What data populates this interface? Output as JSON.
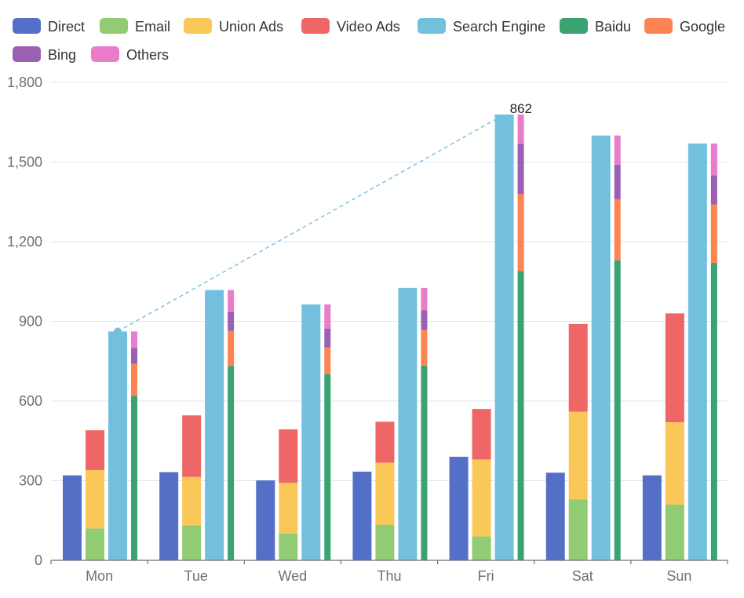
{
  "chart_data": {
    "type": "bar",
    "categories": [
      "Mon",
      "Tue",
      "Wed",
      "Thu",
      "Fri",
      "Sat",
      "Sun"
    ],
    "ylim": [
      0,
      1800
    ],
    "yticks": [
      0,
      300,
      600,
      900,
      1200,
      1500,
      1800
    ],
    "ytick_labels": [
      "0",
      "300",
      "600",
      "900",
      "1,200",
      "1,500",
      "1,800"
    ],
    "grid": true,
    "legend_position": "top-left",
    "series": [
      {
        "name": "Direct",
        "stack": "direct",
        "color": "#5470c6",
        "values": [
          320,
          332,
          301,
          334,
          390,
          330,
          320
        ]
      },
      {
        "name": "Email",
        "stack": "ad",
        "color": "#91cc75",
        "values": [
          120,
          132,
          101,
          134,
          90,
          230,
          210
        ]
      },
      {
        "name": "Union Ads",
        "stack": "ad",
        "color": "#fac858",
        "values": [
          220,
          182,
          191,
          234,
          290,
          330,
          310
        ]
      },
      {
        "name": "Video Ads",
        "stack": "ad",
        "color": "#ee6666",
        "values": [
          150,
          232,
          201,
          154,
          190,
          330,
          410
        ]
      },
      {
        "name": "Search Engine",
        "stack": "search",
        "color": "#73c0de",
        "values": [
          862,
          1018,
          964,
          1026,
          1679,
          1600,
          1570
        ]
      },
      {
        "name": "Baidu",
        "stack": "engine",
        "color": "#3ba272",
        "values": [
          620,
          732,
          701,
          734,
          1090,
          1130,
          1120
        ]
      },
      {
        "name": "Google",
        "stack": "engine",
        "color": "#fc8452",
        "values": [
          120,
          132,
          101,
          134,
          290,
          230,
          220
        ]
      },
      {
        "name": "Bing",
        "stack": "engine",
        "color": "#9a60b4",
        "values": [
          60,
          72,
          71,
          74,
          190,
          130,
          110
        ]
      },
      {
        "name": "Others",
        "stack": "engine",
        "color": "#ea7ccc",
        "values": [
          62,
          82,
          91,
          84,
          109,
          110,
          120
        ]
      }
    ],
    "annotation": {
      "type": "markLine",
      "series": "Search Engine",
      "from": {
        "category": "Mon",
        "value": 862
      },
      "to": {
        "category": "Fri",
        "value": 1679
      },
      "label": "862",
      "color": "#73c0de",
      "style": "dashed"
    }
  }
}
